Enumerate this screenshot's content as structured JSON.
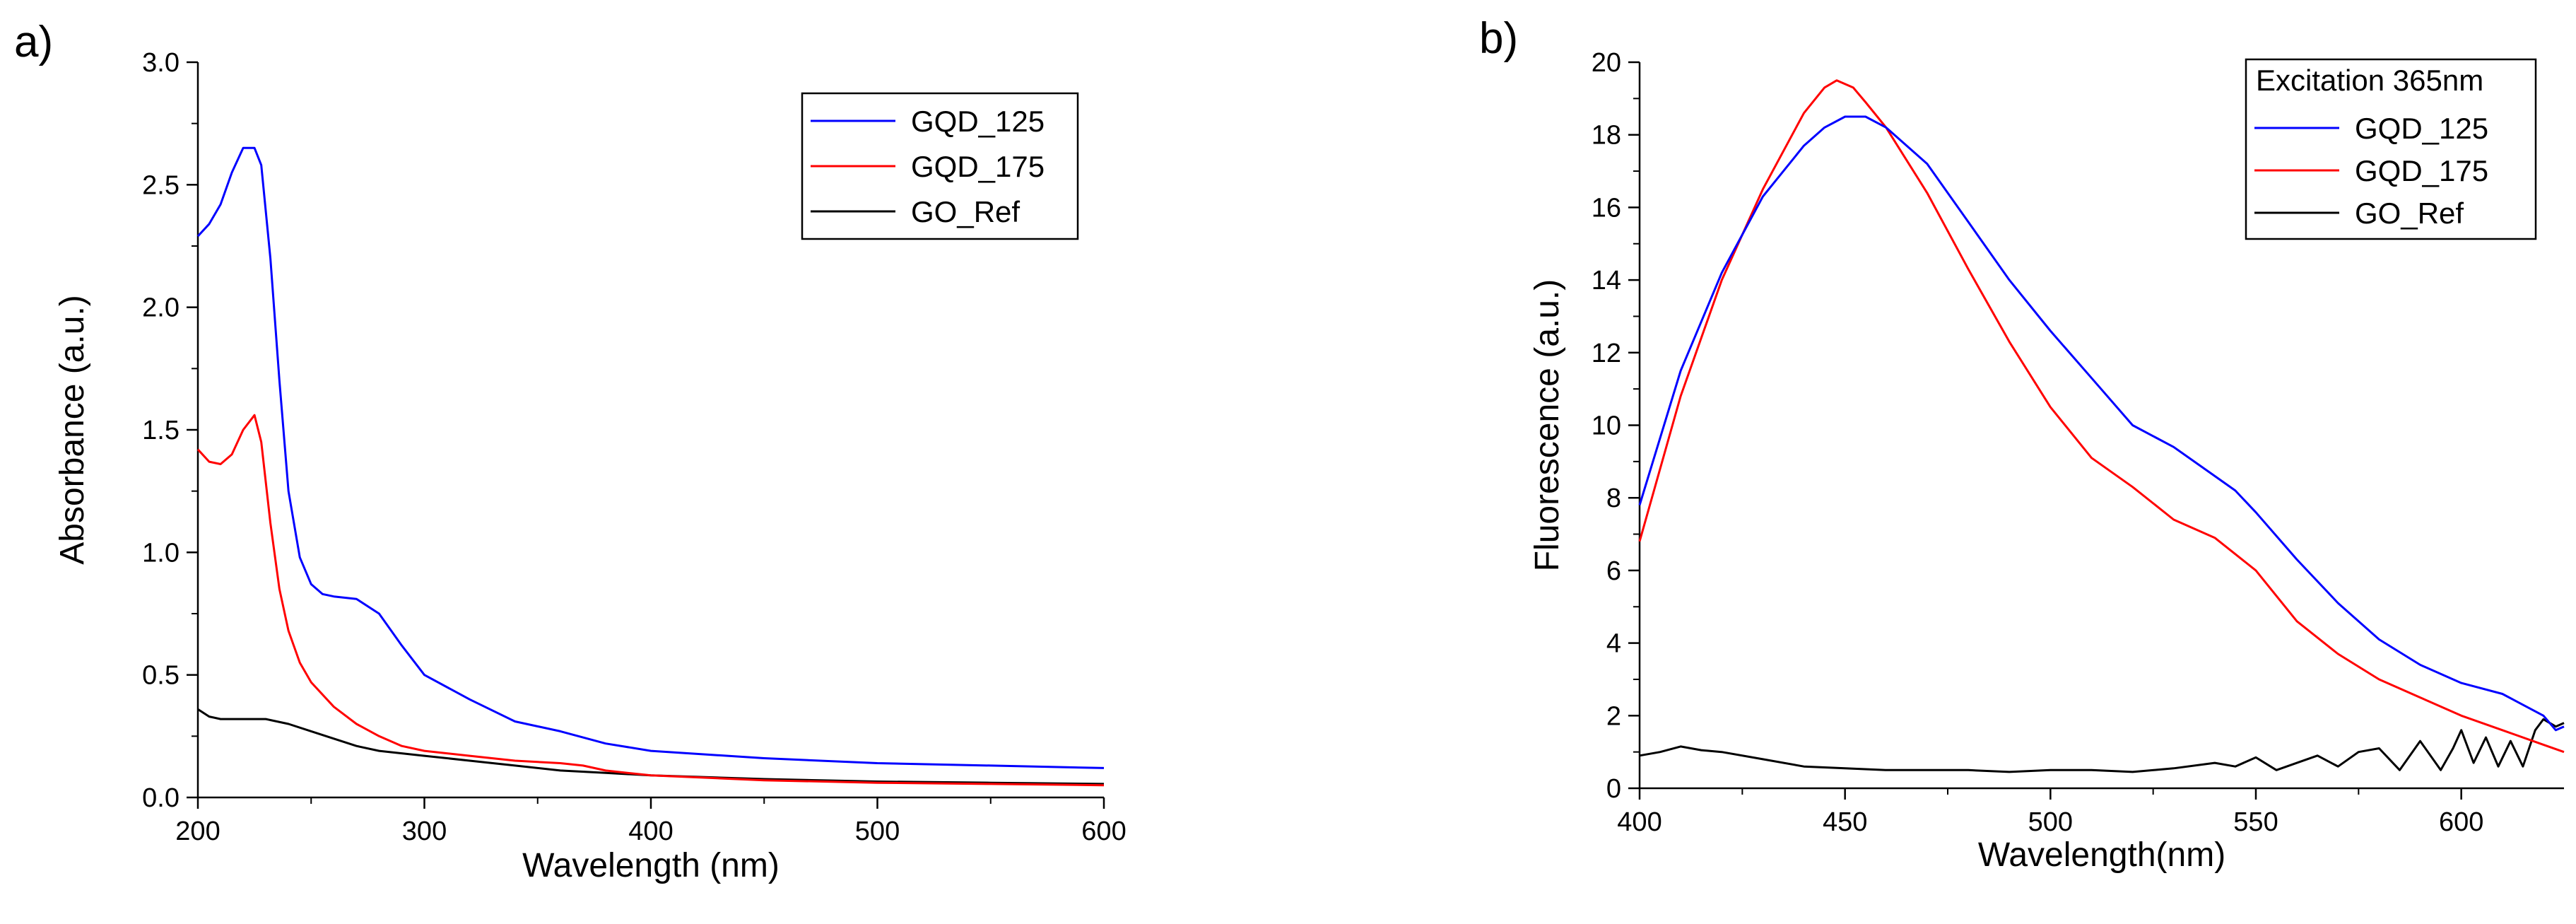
{
  "chart_data": [
    {
      "type": "line",
      "panel_label": "a)",
      "title": "",
      "xlabel": "Wavelength (nm)",
      "ylabel": "Absorbance (a.u.)",
      "xlim": [
        200,
        600
      ],
      "ylim": [
        0.0,
        3.0
      ],
      "x_ticks": [
        200,
        300,
        400,
        500,
        600
      ],
      "x_tick_labels": [
        "200",
        "300",
        "400",
        "500",
        "600"
      ],
      "y_ticks": [
        0.0,
        0.5,
        1.0,
        1.5,
        2.0,
        2.5,
        3.0
      ],
      "y_tick_labels": [
        "0.0",
        "0.5",
        "1.0",
        "1.5",
        "2.0",
        "2.5",
        "3.0"
      ],
      "legend": {
        "placement": "top-right",
        "title": "",
        "entries": [
          "GQD_125",
          "GQD_175",
          "GO_Ref"
        ]
      },
      "series": [
        {
          "name": "GQD_125",
          "color": "#0000ff",
          "x": [
            200,
            205,
            210,
            215,
            220,
            225,
            228,
            232,
            236,
            240,
            245,
            250,
            255,
            260,
            270,
            280,
            290,
            300,
            320,
            340,
            360,
            380,
            400,
            450,
            500,
            550,
            600
          ],
          "y": [
            2.29,
            2.34,
            2.42,
            2.55,
            2.65,
            2.65,
            2.58,
            2.2,
            1.7,
            1.25,
            0.98,
            0.87,
            0.83,
            0.82,
            0.81,
            0.75,
            0.62,
            0.5,
            0.4,
            0.31,
            0.27,
            0.22,
            0.19,
            0.16,
            0.14,
            0.13,
            0.12
          ]
        },
        {
          "name": "GQD_175",
          "color": "#ff0000",
          "x": [
            200,
            205,
            210,
            215,
            220,
            225,
            228,
            232,
            236,
            240,
            245,
            250,
            260,
            270,
            280,
            290,
            300,
            320,
            340,
            360,
            370,
            380,
            400,
            450,
            500,
            550,
            600
          ],
          "y": [
            1.42,
            1.37,
            1.36,
            1.4,
            1.5,
            1.56,
            1.45,
            1.12,
            0.85,
            0.68,
            0.55,
            0.47,
            0.37,
            0.3,
            0.25,
            0.21,
            0.19,
            0.17,
            0.15,
            0.14,
            0.13,
            0.11,
            0.09,
            0.07,
            0.06,
            0.055,
            0.05
          ]
        },
        {
          "name": "GO_Ref",
          "color": "#000000",
          "x": [
            200,
            205,
            210,
            220,
            230,
            240,
            250,
            260,
            270,
            280,
            300,
            320,
            340,
            360,
            380,
            400,
            450,
            500,
            550,
            600
          ],
          "y": [
            0.36,
            0.33,
            0.32,
            0.32,
            0.32,
            0.3,
            0.27,
            0.24,
            0.21,
            0.19,
            0.17,
            0.15,
            0.13,
            0.11,
            0.1,
            0.09,
            0.075,
            0.065,
            0.06,
            0.055
          ]
        }
      ]
    },
    {
      "type": "line",
      "panel_label": "b)",
      "title": "",
      "xlabel": "Wavelength(nm)",
      "ylabel": "Fluorescence (a.u.)",
      "xlim": [
        400,
        625
      ],
      "ylim": [
        0,
        20
      ],
      "x_ticks": [
        400,
        450,
        500,
        550,
        600
      ],
      "x_tick_labels": [
        "400",
        "450",
        "500",
        "550",
        "600"
      ],
      "y_ticks": [
        0,
        2,
        4,
        6,
        8,
        10,
        12,
        14,
        16,
        18,
        20
      ],
      "y_tick_labels": [
        "0",
        "2",
        "4",
        "6",
        "8",
        "10",
        "12",
        "14",
        "16",
        "18",
        "20"
      ],
      "legend": {
        "placement": "top-right",
        "title": "Excitation 365nm",
        "entries": [
          "GQD_125",
          "GQD_175",
          "GO_Ref"
        ]
      },
      "series": [
        {
          "name": "GQD_125",
          "color": "#0000ff",
          "x": [
            400,
            410,
            420,
            430,
            440,
            445,
            450,
            455,
            460,
            470,
            480,
            490,
            500,
            510,
            520,
            530,
            540,
            545,
            550,
            560,
            570,
            580,
            590,
            600,
            610,
            615,
            620,
            623,
            625
          ],
          "y": [
            7.8,
            11.5,
            14.2,
            16.3,
            17.7,
            18.2,
            18.5,
            18.5,
            18.2,
            17.2,
            15.6,
            14.0,
            12.6,
            11.3,
            10.0,
            9.4,
            8.6,
            8.2,
            7.6,
            6.3,
            5.1,
            4.1,
            3.4,
            2.9,
            2.6,
            2.3,
            2.0,
            1.6,
            1.7
          ]
        },
        {
          "name": "GQD_175",
          "color": "#ff0000",
          "x": [
            400,
            410,
            420,
            430,
            440,
            445,
            448,
            452,
            455,
            460,
            470,
            480,
            490,
            500,
            510,
            520,
            530,
            540,
            550,
            560,
            570,
            580,
            590,
            600,
            610,
            620,
            625
          ],
          "y": [
            6.8,
            10.8,
            14.0,
            16.5,
            18.6,
            19.3,
            19.5,
            19.3,
            18.9,
            18.2,
            16.4,
            14.3,
            12.3,
            10.5,
            9.1,
            8.3,
            7.4,
            6.9,
            6.0,
            4.6,
            3.7,
            3.0,
            2.5,
            2.0,
            1.6,
            1.2,
            1.0
          ]
        },
        {
          "name": "GO_Ref",
          "color": "#000000",
          "x": [
            400,
            405,
            410,
            415,
            420,
            430,
            440,
            450,
            460,
            470,
            480,
            490,
            500,
            510,
            520,
            530,
            540,
            545,
            550,
            555,
            560,
            565,
            570,
            575,
            580,
            585,
            590,
            595,
            598,
            600,
            603,
            606,
            609,
            612,
            615,
            618,
            620,
            623,
            625
          ],
          "y": [
            0.9,
            1.0,
            1.15,
            1.05,
            1.0,
            0.8,
            0.6,
            0.55,
            0.5,
            0.5,
            0.5,
            0.45,
            0.5,
            0.5,
            0.45,
            0.55,
            0.7,
            0.6,
            0.85,
            0.5,
            0.7,
            0.9,
            0.6,
            1.0,
            1.1,
            0.5,
            1.3,
            0.5,
            1.1,
            1.6,
            0.7,
            1.4,
            0.6,
            1.3,
            0.6,
            1.6,
            1.9,
            1.7,
            1.8
          ]
        }
      ]
    }
  ]
}
